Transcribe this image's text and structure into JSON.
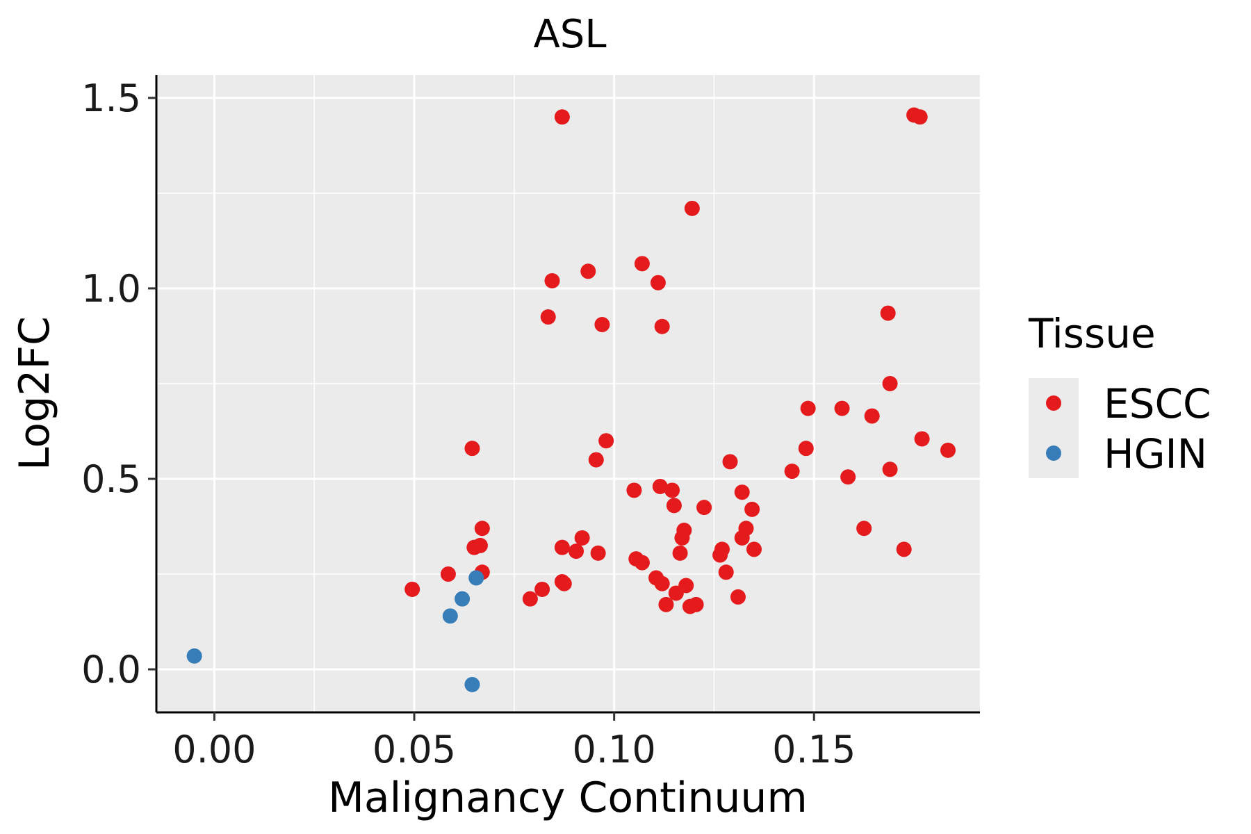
{
  "chart_data": {
    "type": "scatter",
    "title": "ASL",
    "xlabel": "Malignancy Continuum",
    "ylabel": "Log2FC",
    "xlim": [
      -0.0145,
      0.1915
    ],
    "ylim": [
      -0.113,
      1.56
    ],
    "x_ticks": [
      0.0,
      0.05,
      0.1,
      0.15
    ],
    "x_tick_labels": [
      "0.00",
      "0.05",
      "0.10",
      "0.15"
    ],
    "y_ticks": [
      0.0,
      0.5,
      1.0,
      1.5
    ],
    "y_tick_labels": [
      "0.0",
      "0.5",
      "1.0",
      "1.5"
    ],
    "grid": true,
    "legend": {
      "title": "Tissue",
      "position": "right"
    },
    "series": [
      {
        "name": "ESCC",
        "color": "#e41a1c",
        "points": [
          [
            0.0495,
            0.21
          ],
          [
            0.0585,
            0.25
          ],
          [
            0.0645,
            0.58
          ],
          [
            0.065,
            0.32
          ],
          [
            0.0665,
            0.325
          ],
          [
            0.067,
            0.37
          ],
          [
            0.067,
            0.255
          ],
          [
            0.079,
            0.185
          ],
          [
            0.082,
            0.21
          ],
          [
            0.0835,
            0.925
          ],
          [
            0.0845,
            1.02
          ],
          [
            0.087,
            1.45
          ],
          [
            0.087,
            0.32
          ],
          [
            0.087,
            0.23
          ],
          [
            0.0875,
            0.225
          ],
          [
            0.0905,
            0.31
          ],
          [
            0.092,
            0.345
          ],
          [
            0.0935,
            1.045
          ],
          [
            0.0955,
            0.55
          ],
          [
            0.096,
            0.305
          ],
          [
            0.097,
            0.905
          ],
          [
            0.098,
            0.6
          ],
          [
            0.105,
            0.47
          ],
          [
            0.1055,
            0.29
          ],
          [
            0.107,
            1.065
          ],
          [
            0.107,
            0.28
          ],
          [
            0.1105,
            0.24
          ],
          [
            0.111,
            1.015
          ],
          [
            0.1115,
            0.48
          ],
          [
            0.112,
            0.9
          ],
          [
            0.112,
            0.225
          ],
          [
            0.113,
            0.17
          ],
          [
            0.1145,
            0.47
          ],
          [
            0.115,
            0.43
          ],
          [
            0.1155,
            0.2
          ],
          [
            0.1165,
            0.305
          ],
          [
            0.117,
            0.345
          ],
          [
            0.1175,
            0.365
          ],
          [
            0.118,
            0.22
          ],
          [
            0.119,
            0.165
          ],
          [
            0.1195,
            1.21
          ],
          [
            0.1205,
            0.17
          ],
          [
            0.1225,
            0.425
          ],
          [
            0.1265,
            0.3
          ],
          [
            0.127,
            0.315
          ],
          [
            0.128,
            0.255
          ],
          [
            0.129,
            0.545
          ],
          [
            0.131,
            0.19
          ],
          [
            0.132,
            0.345
          ],
          [
            0.132,
            0.465
          ],
          [
            0.133,
            0.37
          ],
          [
            0.1345,
            0.42
          ],
          [
            0.135,
            0.315
          ],
          [
            0.1445,
            0.52
          ],
          [
            0.148,
            0.58
          ],
          [
            0.1485,
            0.685
          ],
          [
            0.157,
            0.685
          ],
          [
            0.1585,
            0.505
          ],
          [
            0.1625,
            0.37
          ],
          [
            0.1645,
            0.665
          ],
          [
            0.1685,
            0.935
          ],
          [
            0.169,
            0.75
          ],
          [
            0.169,
            0.525
          ],
          [
            0.1725,
            0.315
          ],
          [
            0.175,
            1.455
          ],
          [
            0.1765,
            1.45
          ],
          [
            0.177,
            0.605
          ],
          [
            0.1835,
            0.575
          ]
        ]
      },
      {
        "name": "HGIN",
        "color": "#377eb8",
        "points": [
          [
            -0.005,
            0.035
          ],
          [
            0.059,
            0.14
          ],
          [
            0.062,
            0.185
          ],
          [
            0.0645,
            -0.04
          ],
          [
            0.0655,
            0.24
          ]
        ]
      }
    ]
  }
}
